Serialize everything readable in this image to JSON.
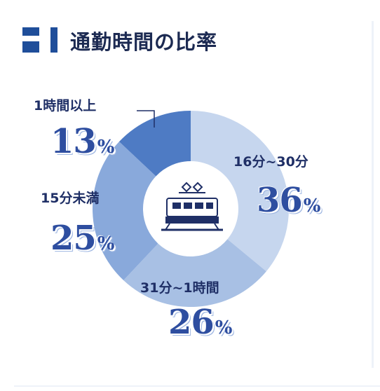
{
  "title": "通勤時間の比率",
  "chart_data": {
    "type": "pie",
    "categories": [
      "16分~30分",
      "31分~1時間",
      "15分未満",
      "1時間以上"
    ],
    "values": [
      36,
      26,
      25,
      13
    ],
    "unit": "%",
    "colors": [
      "#c6d6ee",
      "#a8c0e4",
      "#89a9db",
      "#4e7bc4"
    ],
    "labels": [
      {
        "category": "16分~30分",
        "value": "36",
        "unit": "%"
      },
      {
        "category": "31分~1時間",
        "value": "26",
        "unit": "%"
      },
      {
        "category": "15分未満",
        "value": "25",
        "unit": "%"
      },
      {
        "category": "1時間以上",
        "value": "13",
        "unit": "%"
      }
    ]
  },
  "center_icon": "train-icon"
}
